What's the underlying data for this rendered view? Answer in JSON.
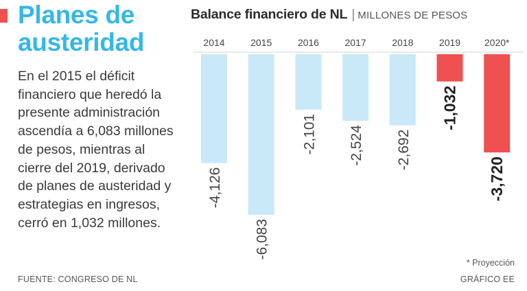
{
  "left": {
    "title_line1": "Planes de",
    "title_line2": "austeridad",
    "body": "En el 2015 el déficit financiero que heredó la presente administración ascendía a 6,083 millones de pesos, mientras al cierre del 2019, derivado de planes de austeridad y estrategias en ingresos, cerró en 1,032 millones.",
    "source": "FUENTE: CONGRESO DE NL"
  },
  "colors": {
    "accent": "#ef5050",
    "title": "#35b7e8",
    "bar_light": "#c9e9f8",
    "bar_highlight": "#ef5050"
  },
  "chart_data": {
    "type": "bar",
    "title": "Balance financiero de NL",
    "title_separator": "|",
    "subtitle": "MILLONES DE PESOS",
    "categories": [
      "2014",
      "2015",
      "2016",
      "2017",
      "2018",
      "2019",
      "2020*"
    ],
    "values": [
      -4126,
      -6083,
      -2101,
      -2524,
      -2692,
      -1032,
      -3720
    ],
    "value_labels": [
      "-4,126",
      "-6,083",
      "-2,101",
      "-2,524",
      "-2,692",
      "-1,032",
      "-3,720"
    ],
    "highlighted": [
      false,
      false,
      false,
      false,
      false,
      true,
      true
    ],
    "ylim": [
      -6083,
      0
    ],
    "xlabel": "",
    "ylabel": "",
    "grid": false,
    "legend": "none"
  },
  "footer": {
    "note": "* Proyección",
    "credit": "GRÁFICO EE"
  }
}
